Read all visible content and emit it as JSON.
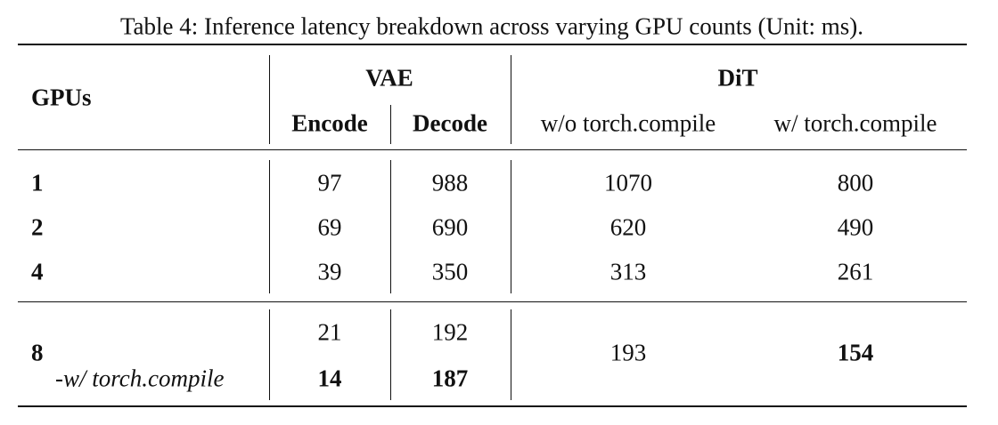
{
  "caption": "Table 4: Inference latency breakdown across varying GPU counts (Unit: ms).",
  "headers": {
    "gpus": "GPUs",
    "vae": "VAE",
    "dit": "DiT",
    "encode": "Encode",
    "decode": "Decode",
    "wo_compile": "w/o torch.compile",
    "w_compile": "w/ torch.compile"
  },
  "rows": [
    {
      "gpus": "1",
      "encode": "97",
      "decode": "988",
      "wo": "1070",
      "w": "800"
    },
    {
      "gpus": "2",
      "encode": "69",
      "decode": "690",
      "wo": "620",
      "w": "490"
    },
    {
      "gpus": "4",
      "encode": "39",
      "decode": "350",
      "wo": "313",
      "w": "261"
    }
  ],
  "row8": {
    "gpus": "8",
    "sub_label": "-w/ torch.compile",
    "encode": "21",
    "decode": "192",
    "encode_compiled": "14",
    "decode_compiled": "187",
    "wo": "193",
    "w": "154"
  }
}
